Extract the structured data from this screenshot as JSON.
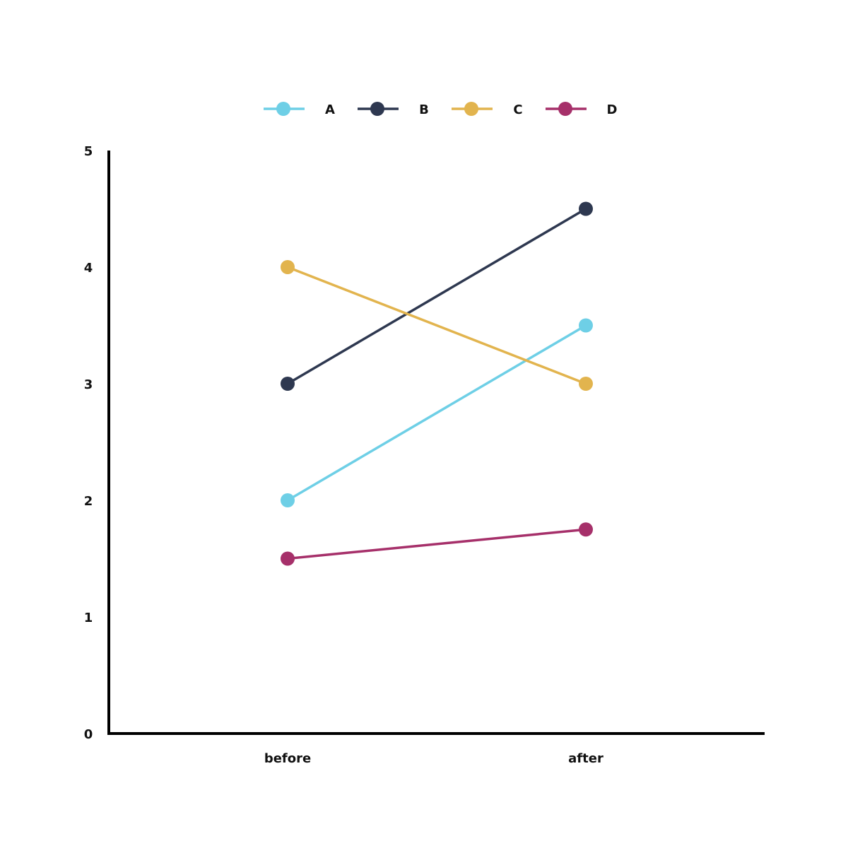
{
  "chart_data": {
    "type": "line",
    "title": "",
    "xlabel": "",
    "ylabel": "",
    "categories": [
      "before",
      "after"
    ],
    "ylim": [
      0,
      5
    ],
    "yticks": [
      0,
      1,
      2,
      3,
      4,
      5
    ],
    "grid": false,
    "legend_position": "top-center",
    "series": [
      {
        "name": "A",
        "values": [
          2,
          3.5
        ],
        "color": "#6ecfe6"
      },
      {
        "name": "B",
        "values": [
          3,
          4.5
        ],
        "color": "#2e3850"
      },
      {
        "name": "C",
        "values": [
          4,
          3
        ],
        "color": "#e2b44e"
      },
      {
        "name": "D",
        "values": [
          1.5,
          1.75
        ],
        "color": "#a6306a"
      }
    ]
  }
}
